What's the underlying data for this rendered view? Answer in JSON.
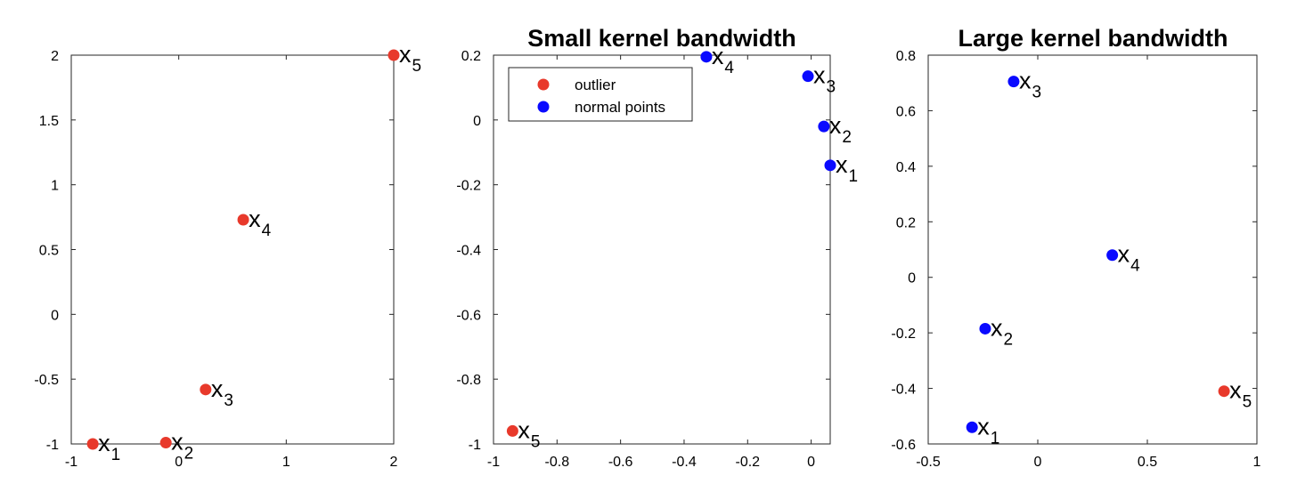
{
  "chart_data": [
    {
      "type": "scatter",
      "title": "",
      "xlabel": "",
      "ylabel": "",
      "xlim": [
        -1,
        2
      ],
      "ylim": [
        -1,
        2
      ],
      "xticks": [
        -1,
        0,
        1,
        2
      ],
      "xtick_labels": [
        "-1",
        "0",
        "1",
        "2"
      ],
      "yticks": [
        -1,
        -0.5,
        0,
        0.5,
        1,
        1.5,
        2
      ],
      "ytick_labels": [
        "-1",
        "-0.5",
        "0",
        "0.5",
        "1",
        "1.5",
        "2"
      ],
      "grid": false,
      "points": [
        {
          "label": "x",
          "sub": "1",
          "x": -0.8,
          "y": -1.0,
          "color": "#e8392b"
        },
        {
          "label": "x",
          "sub": "2",
          "x": -0.12,
          "y": -0.99,
          "color": "#e8392b"
        },
        {
          "label": "x",
          "sub": "3",
          "x": 0.25,
          "y": -0.58,
          "color": "#e8392b"
        },
        {
          "label": "x",
          "sub": "4",
          "x": 0.6,
          "y": 0.73,
          "color": "#e8392b"
        },
        {
          "label": "x",
          "sub": "5",
          "x": 2.0,
          "y": 2.0,
          "color": "#e8392b"
        }
      ]
    },
    {
      "type": "scatter",
      "title": "Small kernel bandwidth",
      "xlabel": "",
      "ylabel": "",
      "xlim": [
        -1,
        0.06
      ],
      "ylim": [
        -1,
        0.2
      ],
      "xticks": [
        -1,
        -0.8,
        -0.6,
        -0.4,
        -0.2,
        0
      ],
      "xtick_labels": [
        "-1",
        "-0.8",
        "-0.6",
        "-0.4",
        "-0.2",
        "0"
      ],
      "yticks": [
        -1,
        -0.8,
        -0.6,
        -0.4,
        -0.2,
        0,
        0.2
      ],
      "ytick_labels": [
        "-1",
        "-0.8",
        "-0.6",
        "-0.4",
        "-0.2",
        "0",
        "0.2"
      ],
      "grid": false,
      "legend": {
        "placement": "top-left",
        "entries": [
          {
            "label": "outlier",
            "color": "#e8392b"
          },
          {
            "label": "normal points",
            "color": "#0a0aff"
          }
        ]
      },
      "points": [
        {
          "label": "x",
          "sub": "1",
          "x": 0.06,
          "y": -0.14,
          "color": "#0a0aff"
        },
        {
          "label": "x",
          "sub": "2",
          "x": 0.04,
          "y": -0.02,
          "color": "#0a0aff"
        },
        {
          "label": "x",
          "sub": "3",
          "x": -0.01,
          "y": 0.135,
          "color": "#0a0aff"
        },
        {
          "label": "x",
          "sub": "4",
          "x": -0.33,
          "y": 0.195,
          "color": "#0a0aff"
        },
        {
          "label": "x",
          "sub": "5",
          "x": -0.94,
          "y": -0.96,
          "color": "#e8392b"
        }
      ]
    },
    {
      "type": "scatter",
      "title": "Large kernel bandwidth",
      "xlabel": "",
      "ylabel": "",
      "xlim": [
        -0.5,
        1
      ],
      "ylim": [
        -0.6,
        0.8
      ],
      "xticks": [
        -0.5,
        0,
        0.5,
        1
      ],
      "xtick_labels": [
        "-0.5",
        "0",
        "0.5",
        "1"
      ],
      "yticks": [
        -0.6,
        -0.4,
        -0.2,
        0,
        0.2,
        0.4,
        0.6,
        0.8
      ],
      "ytick_labels": [
        "-0.6",
        "-0.4",
        "-0.2",
        "0",
        "0.2",
        "0.4",
        "0.6",
        "0.8"
      ],
      "grid": false,
      "points": [
        {
          "label": "x",
          "sub": "1",
          "x": -0.3,
          "y": -0.54,
          "color": "#0a0aff"
        },
        {
          "label": "x",
          "sub": "2",
          "x": -0.24,
          "y": -0.185,
          "color": "#0a0aff"
        },
        {
          "label": "x",
          "sub": "3",
          "x": -0.11,
          "y": 0.705,
          "color": "#0a0aff"
        },
        {
          "label": "x",
          "sub": "4",
          "x": 0.34,
          "y": 0.08,
          "color": "#0a0aff"
        },
        {
          "label": "x",
          "sub": "5",
          "x": 0.85,
          "y": -0.41,
          "color": "#e8392b"
        }
      ]
    }
  ]
}
